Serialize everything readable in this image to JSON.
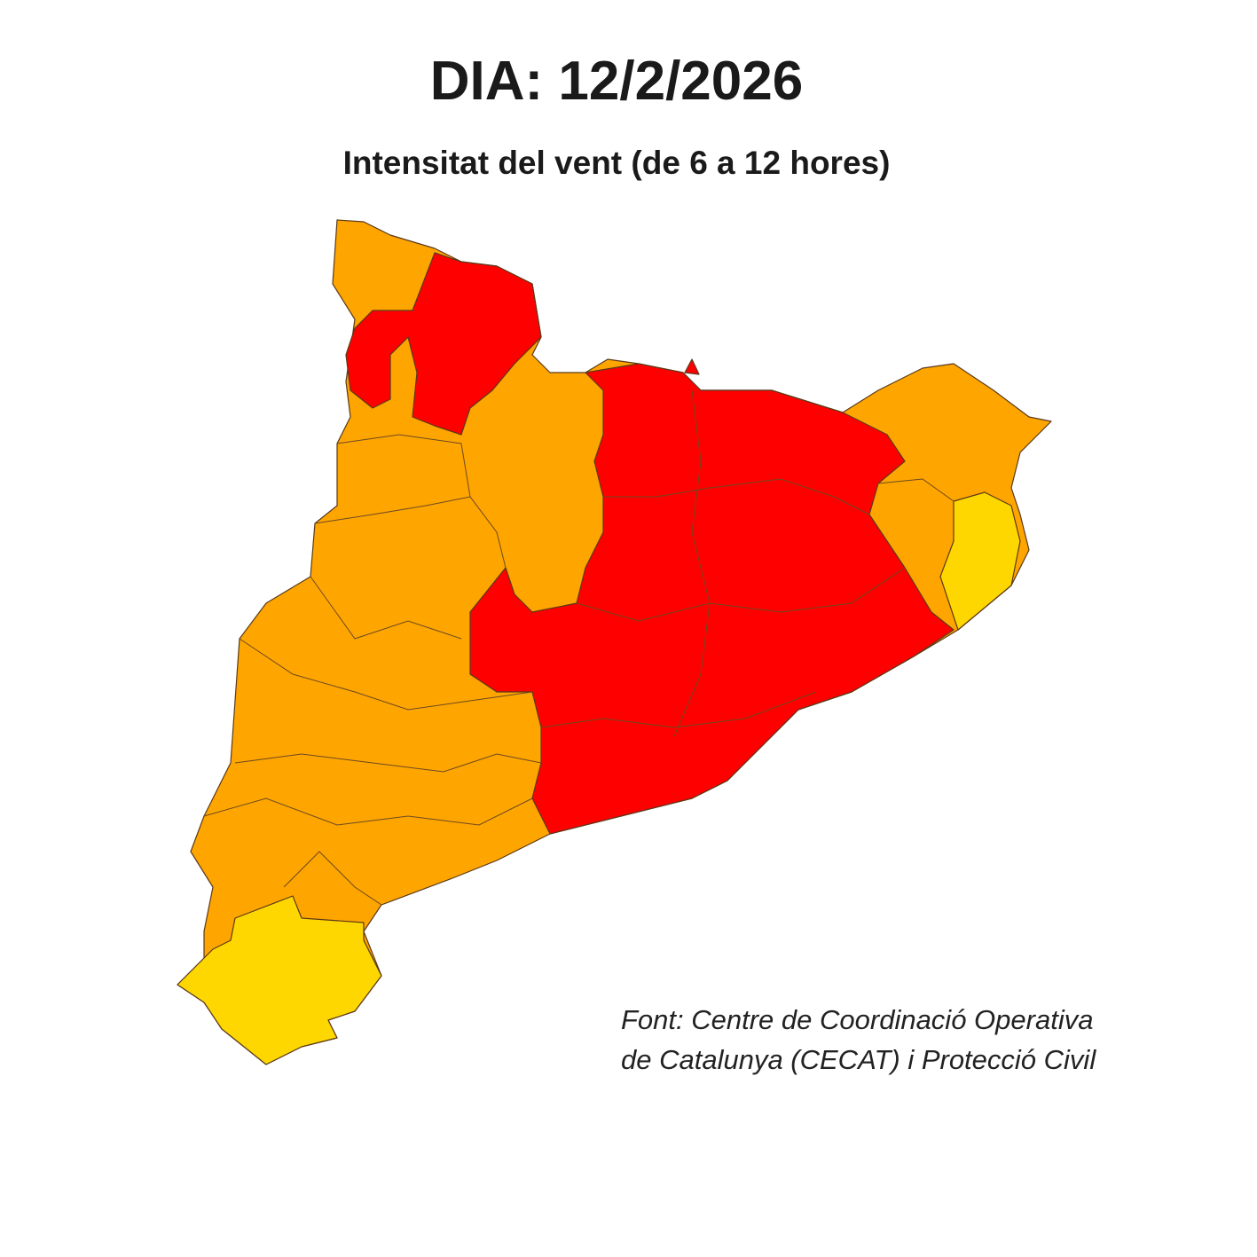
{
  "header": {
    "title": "DIA: 12/2/2026",
    "subtitle": "Intensitat del vent (de 6 a 12 hores)"
  },
  "source": {
    "lines": [
      "Font: Centre de Coordinació Operativa",
      "de Catalunya (CECAT) i Protecció Civil"
    ]
  }
}
